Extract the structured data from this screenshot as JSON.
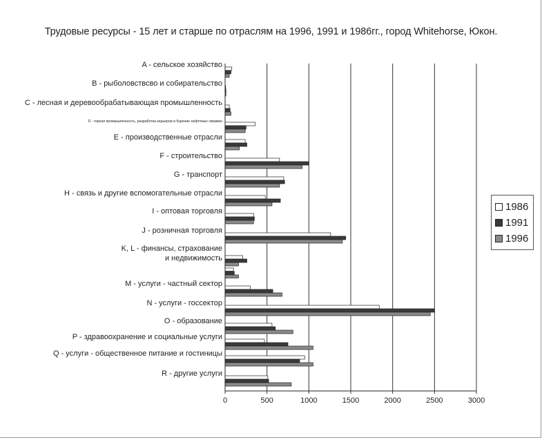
{
  "chart_data": {
    "type": "bar",
    "orientation": "horizontal",
    "title": "Трудовые ресурсы - 15 лет и старше по отраслям на 1996, 1991 и 1986гг., город Whitehorse, Юкон.",
    "xlabel": "",
    "ylabel": "",
    "xlim": [
      0,
      3000
    ],
    "x_ticks": [
      "0",
      "500",
      "1000",
      "1500",
      "2000",
      "2500",
      "3000"
    ],
    "grid": "vertical",
    "legend_position": "right",
    "categories": [
      [
        "A - сельское хозяйство"
      ],
      [
        "B - рыболовствсво и собирательство"
      ],
      [
        "C - лесная и деревообрабатывающая промышленность"
      ],
      [
        "D - горная промышленность, разработка карьеров и бурение нефтяных скважин"
      ],
      [
        "E - производственные отрасли"
      ],
      [
        "F - строительство"
      ],
      [
        "G - транспорт"
      ],
      [
        "H - связь и другие вспомогательные отрасли"
      ],
      [
        "I - оптовая торговля"
      ],
      [
        "J - розничная торговля"
      ],
      [
        "K, L - финансы, страхование",
        "и недвижимость"
      ],
      [
        "M - услуги - частный сектор"
      ],
      [
        "N - услуги - госсектор"
      ],
      [
        "O - образование"
      ],
      [
        "P - здравоохранение и социальные услуги"
      ],
      [
        "Q - услуги - общественное питание и гостиницы"
      ],
      [
        "R - другие услуги"
      ]
    ],
    "series": [
      {
        "name": "1986",
        "color": "#ffffff",
        "values": [
          80,
          5,
          50,
          360,
          240,
          650,
          700,
          480,
          340,
          1260,
          210,
          300,
          1840,
          560,
          470,
          950,
          510
        ]
      },
      {
        "name": "1991",
        "color": "#3a3a3a",
        "values": [
          70,
          10,
          60,
          250,
          260,
          1000,
          710,
          660,
          350,
          1440,
          260,
          570,
          2500,
          600,
          750,
          890,
          520
        ]
      },
      {
        "name": "1996",
        "color": "#8a8a8a",
        "values": [
          50,
          10,
          70,
          240,
          170,
          920,
          650,
          560,
          340,
          1400,
          160,
          680,
          2450,
          810,
          1050,
          1050,
          790
        ]
      }
    ],
    "extra_bars": [
      {
        "category_index": 10,
        "values": [
          100,
          110,
          160
        ]
      }
    ]
  }
}
